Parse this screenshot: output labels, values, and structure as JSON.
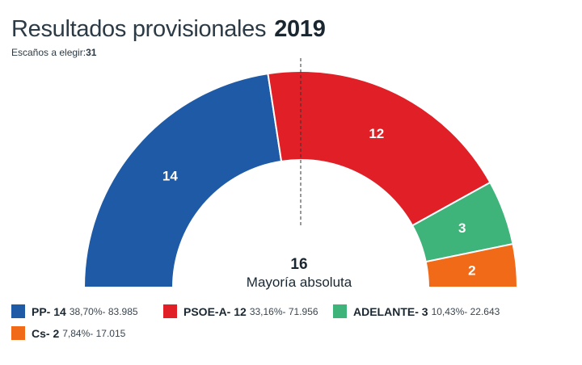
{
  "header": {
    "title": "Resultados provisionales",
    "year": "2019",
    "seats_label": "Escaños a elegir:",
    "seats_value": "31"
  },
  "majority": {
    "value": "16",
    "label": "Mayoría absoluta"
  },
  "chart_data": {
    "type": "pie",
    "subtype": "parliament-semicircle",
    "total_seats": 31,
    "majority_line": "vertical dashed line at 50%",
    "series": [
      {
        "name": "PP",
        "seats": 14,
        "percent": "38,70%",
        "votes": "83.985",
        "color": "#1f5aa6",
        "legend_name": "PP- 14",
        "legend_detail": "38,70%- 83.985"
      },
      {
        "name": "PSOE-A",
        "seats": 12,
        "percent": "33,16%",
        "votes": "71.956",
        "color": "#e01f26",
        "legend_name": "PSOE-A- 12",
        "legend_detail": "33,16%- 71.956"
      },
      {
        "name": "ADELANTE",
        "seats": 3,
        "percent": "10,43%",
        "votes": "22.643",
        "color": "#3eb47a",
        "legend_name": "ADELANTE- 3",
        "legend_detail": "10,43%- 22.643"
      },
      {
        "name": "Cs",
        "seats": 2,
        "percent": "7,84%",
        "votes": "17.015",
        "color": "#f06a18",
        "legend_name": "Cs- 2",
        "legend_detail": "7,84%- 17.015"
      }
    ]
  }
}
